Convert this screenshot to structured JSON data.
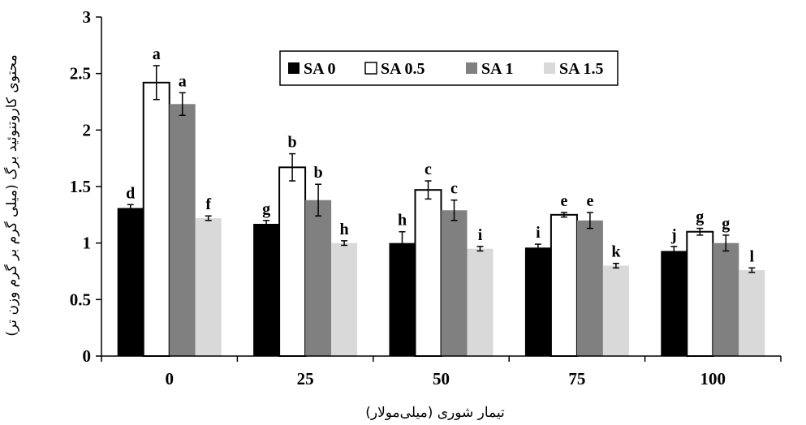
{
  "chart_data": {
    "type": "bar",
    "categories": [
      "0",
      "25",
      "50",
      "75",
      "100"
    ],
    "xlabel": "تیمار شوری (میلی‌مولار)",
    "ylabel": "محتوی کاروتنوئید برگ (میلی گرم بر گرم وزن تر)",
    "ylim": [
      0,
      3
    ],
    "yticks": [
      "0",
      "0.5",
      "1",
      "1.5",
      "2",
      "2.5",
      "3"
    ],
    "grid": false,
    "legend_position": "top-center",
    "series": [
      {
        "name": "SA 0",
        "color": "#000000",
        "values": [
          1.31,
          1.17,
          1.0,
          0.96,
          0.93
        ],
        "errors": [
          0.03,
          0.03,
          0.1,
          0.03,
          0.04
        ],
        "letters": [
          "d",
          "g",
          "h",
          "i",
          "j"
        ]
      },
      {
        "name": "SA 0.5",
        "color": "#ffffff",
        "values": [
          2.42,
          1.67,
          1.47,
          1.25,
          1.1
        ],
        "errors": [
          0.15,
          0.12,
          0.08,
          0.02,
          0.03
        ],
        "letters": [
          "a",
          "b",
          "c",
          "e",
          "g"
        ]
      },
      {
        "name": "SA 1",
        "color": "#808080",
        "values": [
          2.23,
          1.38,
          1.29,
          1.2,
          1.0
        ],
        "errors": [
          0.1,
          0.14,
          0.09,
          0.07,
          0.07
        ],
        "letters": [
          "a",
          "b",
          "c",
          "e",
          "g"
        ]
      },
      {
        "name": "SA 1.5",
        "color": "#d9d9d9",
        "values": [
          1.22,
          1.0,
          0.95,
          0.8,
          0.76
        ],
        "errors": [
          0.02,
          0.02,
          0.02,
          0.02,
          0.02
        ],
        "letters": [
          "f",
          "h",
          "i",
          "k",
          "l"
        ]
      }
    ]
  }
}
